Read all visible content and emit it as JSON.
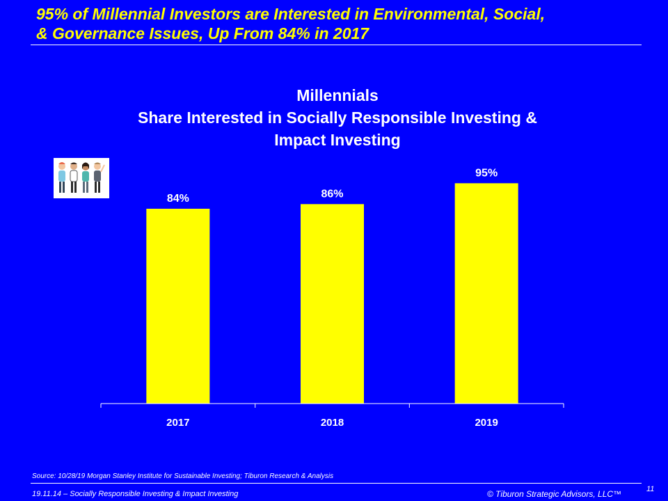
{
  "slide": {
    "title_line1": "95% of Millennial Investors are Interested in Environmental, Social,",
    "title_line2": "& Governance Issues, Up From 84% in 2017"
  },
  "chart_data": {
    "type": "bar",
    "title_lines": [
      "Millennials",
      "Share Interested in Socially Responsible Investing &",
      "Impact Investing"
    ],
    "categories": [
      "2017",
      "2018",
      "2019"
    ],
    "values": [
      84,
      86,
      95
    ],
    "value_labels": [
      "84%",
      "86%",
      "95%"
    ],
    "ylim": [
      0,
      105
    ],
    "xlabel": "",
    "ylabel": "",
    "bar_color": "#ffff00",
    "grid": false
  },
  "footer": {
    "source": "Source:  10/28/19 Morgan Stanley Institute for Sustainable Investing; Tiburon Research & Analysis",
    "left": "19.11.14 – Socially Responsible Investing & Impact Investing",
    "right": "© Tiburon Strategic Advisors, LLC™",
    "page": "11"
  },
  "colors": {
    "background": "#0000ff",
    "accent": "#ffff00",
    "text": "#ffffff"
  }
}
